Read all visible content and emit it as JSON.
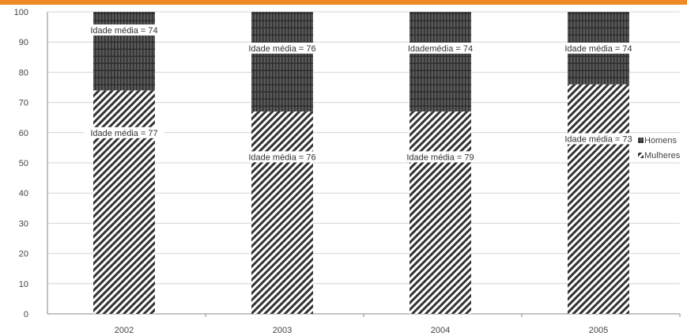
{
  "chart_data": {
    "type": "bar",
    "stacked": true,
    "categories": [
      "2002",
      "2003",
      "2004",
      "2005"
    ],
    "series": [
      {
        "name": "Mulheres",
        "values": [
          74,
          67,
          67,
          76
        ],
        "color": "#333333",
        "pattern": "diagonal-hatch"
      },
      {
        "name": "Homens",
        "values": [
          26,
          33,
          33,
          24
        ],
        "color": "#444444",
        "pattern": "vertical-grid"
      }
    ],
    "labels_mulheres": [
      "Idade  média = 77",
      "Idade média = 76",
      "Idade média = 79",
      "Idade média = 73"
    ],
    "labels_homens": [
      "Idade média = 74",
      "Idade média = 76",
      "Idademédia = 74",
      "Idade média = 74"
    ],
    "ylim": [
      0,
      100
    ],
    "yticks": [
      0,
      10,
      20,
      30,
      40,
      50,
      60,
      70,
      80,
      90,
      100
    ],
    "grid": true,
    "legend_position": "right",
    "accent_color": "#f08a24"
  }
}
